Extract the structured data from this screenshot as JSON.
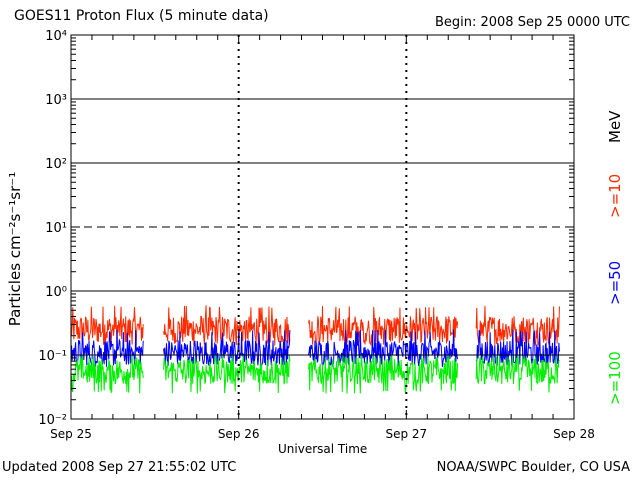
{
  "header": {
    "title": "GOES11 Proton Flux (5 minute data)",
    "begin": "Begin: 2008 Sep 25 0000 UTC"
  },
  "footer": {
    "updated": "Updated 2008 Sep 27 21:55:02 UTC",
    "credit": "NOAA/SWPC Boulder, CO USA"
  },
  "axes": {
    "xlabel": "Universal Time",
    "ylabel": "Particles cm⁻²s⁻¹sr⁻¹",
    "unit": "MeV"
  },
  "colors": {
    "ge10": "#ff2a00",
    "ge50": "#0000ff",
    "ge100": "#00ee00"
  },
  "chart_data": {
    "type": "line",
    "title": "GOES11 Proton Flux (5 minute data)",
    "xlabel": "Universal Time",
    "ylabel": "Particles cm⁻²s⁻¹sr⁻¹",
    "y_scale": "log",
    "ylim": [
      0.01,
      10000
    ],
    "xlim": [
      "2008-09-25 00:00",
      "2008-09-28 00:00"
    ],
    "x_ticks": [
      "Sep 25",
      "Sep 26",
      "Sep 27",
      "Sep 28"
    ],
    "y_ticks": [
      "10⁻²",
      "10⁻¹",
      "10⁰",
      "10¹",
      "10²",
      "10³",
      "10⁴"
    ],
    "threshold_lines": [
      {
        "value": 0.1,
        "style": "solid"
      },
      {
        "value": 1,
        "style": "solid"
      },
      {
        "value": 10,
        "style": "dashed"
      },
      {
        "value": 100,
        "style": "solid"
      },
      {
        "value": 1000,
        "style": "solid"
      }
    ],
    "data_gaps": [
      [
        "2008-09-25 10:20",
        "2008-09-25 13:15"
      ],
      [
        "2008-09-26 07:20",
        "2008-09-26 10:00"
      ],
      [
        "2008-09-27 07:20",
        "2008-09-27 10:00"
      ]
    ],
    "series": [
      {
        "name": ">=10",
        "color": "#ff2a00",
        "typical": 0.25,
        "range": [
          0.14,
          0.6
        ]
      },
      {
        "name": ">=50",
        "color": "#0000ff",
        "typical": 0.11,
        "range": [
          0.065,
          0.25
        ]
      },
      {
        "name": ">=100",
        "color": "#00ee00",
        "typical": 0.055,
        "range": [
          0.025,
          0.1
        ]
      }
    ]
  }
}
